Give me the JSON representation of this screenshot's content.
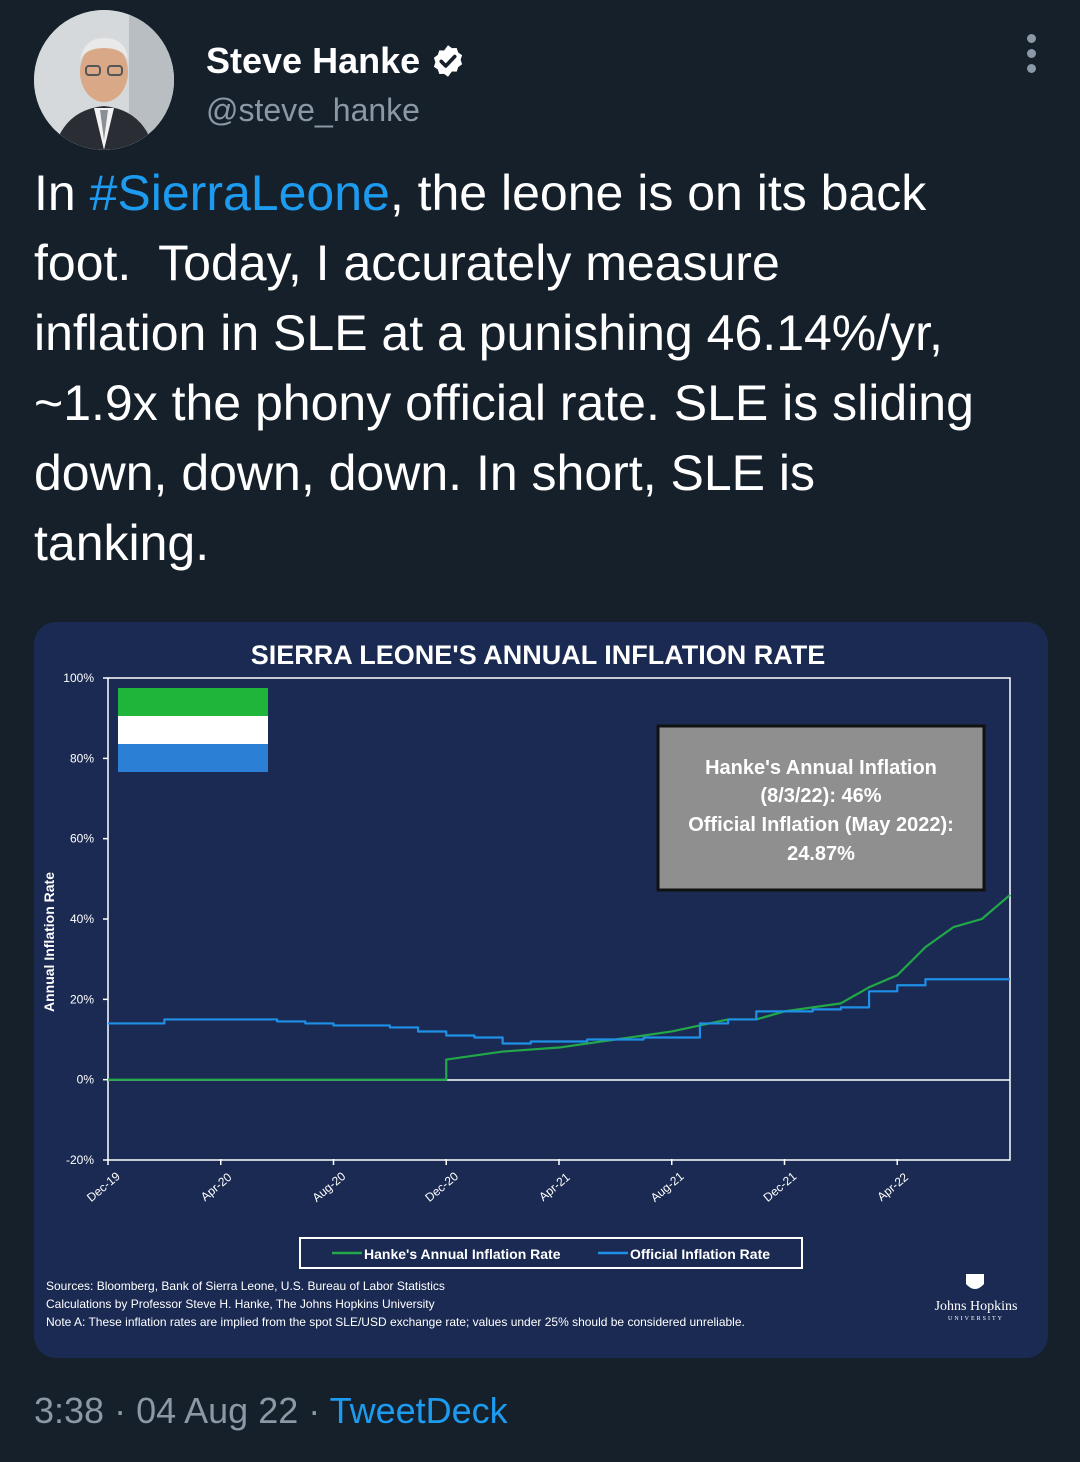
{
  "user": {
    "display_name": "Steve Hanke",
    "handle": "@steve_hanke"
  },
  "tweet": {
    "text_before": "In ",
    "hashtag": "#SierraLeone",
    "text_after": ", the leone is on its back\nfoot.  Today, I accurately measure\ninflation in SLE at a punishing 46.14%/yr,\n~1.9x the phony official rate. SLE is sliding\ndown, down, down. In short, SLE is\ntanking."
  },
  "footer": {
    "time": "3:38",
    "sep1": " · ",
    "date": "04 Aug 22",
    "sep2": " · ",
    "source": "TweetDeck"
  },
  "colors": {
    "background": "#15202b",
    "link": "#1d9bf0",
    "chart_bg": "#1b2a52",
    "hanke_line": "#22a849",
    "official_line": "#1e90e8"
  },
  "icons": [
    "verified-badge-icon",
    "more-options-icon",
    "sierra-leone-flag",
    "johns-hopkins-logo"
  ],
  "chart_data": {
    "type": "line",
    "title": "SIERRA LEONE'S ANNUAL INFLATION RATE",
    "ylabel": "Annual Inflation Rate",
    "ylim": [
      -20,
      100
    ],
    "y_ticks": [
      "100%",
      "80%",
      "60%",
      "40%",
      "20%",
      "0%",
      "-20%"
    ],
    "y_tick_values": [
      100,
      80,
      60,
      40,
      20,
      0,
      -20
    ],
    "x_ticks": [
      "Dec-19",
      "Apr-20",
      "Aug-20",
      "Dec-20",
      "Apr-21",
      "Aug-21",
      "Dec-21",
      "Apr-22"
    ],
    "x_range": [
      "2019-12",
      "2022-08"
    ],
    "legend_position": "bottom",
    "grid": false,
    "annotation": {
      "lines": [
        "Hanke's Annual Inflation",
        "(8/3/22): 46%",
        "Official Inflation (May 2022):",
        "24.87%"
      ]
    },
    "series": [
      {
        "name": "Hanke's Annual Inflation Rate",
        "color": "#22a849",
        "x": [
          "2019-12",
          "2020-04",
          "2020-08",
          "2020-12",
          "2020-12",
          "2021-02",
          "2021-04",
          "2021-06",
          "2021-08",
          "2021-10",
          "2021-11",
          "2021-12",
          "2022-02",
          "2022-03",
          "2022-04",
          "2022-05",
          "2022-06",
          "2022-07",
          "2022-08"
        ],
        "values": [
          0,
          0,
          0,
          0,
          5,
          7,
          8,
          10,
          12,
          15,
          15,
          17,
          19,
          23,
          26,
          33,
          38,
          40,
          46
        ]
      },
      {
        "name": "Official Inflation Rate",
        "color": "#1e90e8",
        "x": [
          "2019-12",
          "2020-01",
          "2020-02",
          "2020-03",
          "2020-04",
          "2020-05",
          "2020-06",
          "2020-07",
          "2020-08",
          "2020-09",
          "2020-10",
          "2020-11",
          "2020-12",
          "2021-01",
          "2021-02",
          "2021-03",
          "2021-04",
          "2021-05",
          "2021-06",
          "2021-07",
          "2021-08",
          "2021-09",
          "2021-10",
          "2021-11",
          "2021-12",
          "2022-01",
          "2022-02",
          "2022-03",
          "2022-04",
          "2022-05",
          "2022-06",
          "2022-07",
          "2022-08"
        ],
        "values": [
          14,
          14,
          15,
          15,
          15,
          15,
          14.5,
          14,
          13.5,
          13.5,
          13,
          12,
          11,
          10.5,
          9,
          9.5,
          9.5,
          10,
          10,
          10.5,
          10.5,
          14,
          15,
          17,
          17,
          17.5,
          18,
          22,
          23.5,
          25,
          25,
          25,
          25
        ]
      }
    ],
    "sources_lines": [
      "Sources: Bloomberg, Bank of Sierra Leone, U.S. Bureau of Labor Statistics",
      "Calculations by Professor Steve H. Hanke, The Johns Hopkins University",
      "Note A: These inflation rates are implied from the spot SLE/USD exchange rate; values under 25% should be considered unreliable."
    ],
    "logo": {
      "name": "Johns Hopkins",
      "sub": "UNIVERSITY"
    }
  }
}
